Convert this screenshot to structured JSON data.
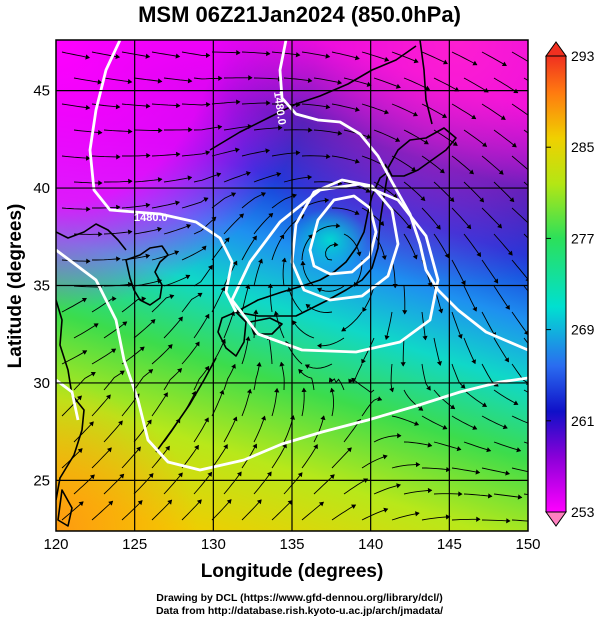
{
  "title": "MSM 06Z21Jan2024 (850.0hPa)",
  "map": {
    "xlabel": "Longitude (degrees)",
    "ylabel": "Latitude  (degrees)",
    "xlim": [
      120,
      150
    ],
    "ylim": [
      22.4,
      47.6
    ],
    "x_ticks": [
      "120",
      "125",
      "130",
      "135",
      "140",
      "145",
      "150"
    ],
    "y_ticks": [
      "25",
      "30",
      "35",
      "40",
      "45"
    ],
    "field": "temperature (K) at 850.0hPa, shaded",
    "overlay": "streamlines (wind), coastlines, white geopotential height contours",
    "colormap": [
      "#ff00ff",
      "#8a00d8",
      "#1010c8",
      "#2a6cf0",
      "#00e0d0",
      "#2ce05a",
      "#b4e614",
      "#f0d000",
      "#ff7a10",
      "#f03020"
    ]
  },
  "contours": [
    {
      "label": "1480.0"
    },
    {
      "label": "1480.0"
    }
  ],
  "colorbar": {
    "ticks": [
      "293",
      "285",
      "277",
      "269",
      "261",
      "253"
    ],
    "values": [
      293,
      285,
      277,
      269,
      261,
      253
    ],
    "min": 253,
    "max": 293
  },
  "credit": {
    "line1": "Drawing by DCL (https://www.gfd-dennou.org/library/dcl/)",
    "line2": "Data from http://database.rish.kyoto-u.ac.jp/arch/jmadata/"
  }
}
